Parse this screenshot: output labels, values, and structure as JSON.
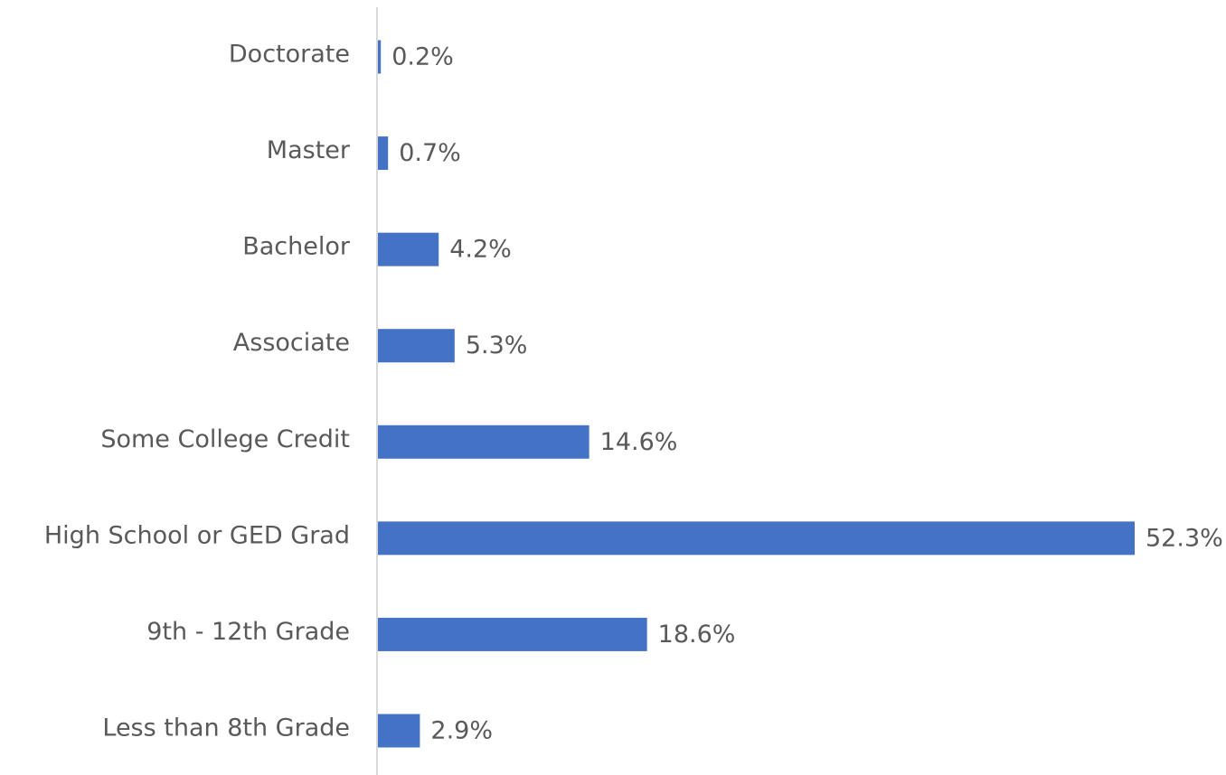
{
  "chart_data": {
    "type": "barh",
    "categories": [
      "Doctorate",
      "Master",
      "Bachelor",
      "Associate",
      "Some College Credit",
      "High School or GED Grad",
      "9th - 12th Grade",
      "Less than 8th Grade"
    ],
    "values": [
      0.2,
      0.7,
      4.2,
      5.3,
      14.6,
      52.3,
      18.6,
      2.9
    ],
    "value_labels": [
      "0.2%",
      "0.7%",
      "4.2%",
      "5.3%",
      "14.6%",
      "52.3%",
      "18.6%",
      "2.9%"
    ],
    "color": "#4472c4"
  }
}
